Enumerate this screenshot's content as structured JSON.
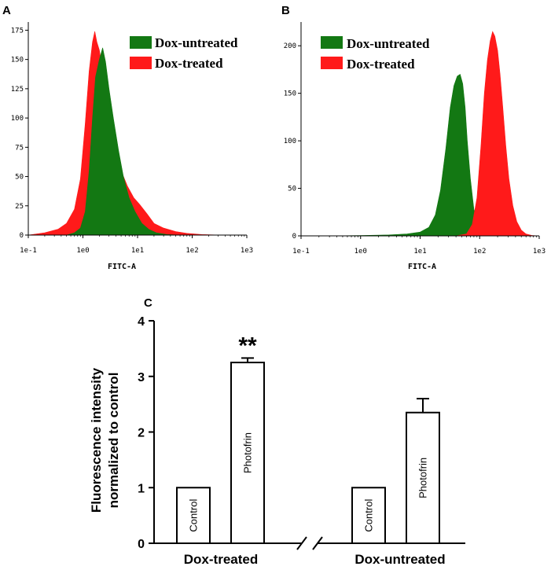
{
  "colors": {
    "untreated": "#137813",
    "treated": "#ff1a1a",
    "axis": "#000000",
    "bar_fill": "#ffffff"
  },
  "chart_data": [
    {
      "panel": "A",
      "type": "area",
      "title": "",
      "xlabel": "FITC-A",
      "ylabel": "",
      "x_scale": "log",
      "x_ticks": [
        "1e-1",
        "1e0",
        "1e1",
        "1e2",
        "1e3"
      ],
      "x_tick_values": [
        0.1,
        1,
        10,
        100,
        1000
      ],
      "y_ticks": [
        0,
        25,
        50,
        75,
        100,
        125,
        150,
        175
      ],
      "ylim": [
        0,
        182
      ],
      "legend": [
        "Dox-untreated",
        "Dox-treated"
      ],
      "legend_position": "top-right",
      "series": [
        {
          "name": "Dox-treated",
          "color_key": "treated",
          "x": [
            0.1,
            0.2,
            0.35,
            0.5,
            0.7,
            0.9,
            1.1,
            1.3,
            1.5,
            1.65,
            1.8,
            2.0,
            2.3,
            2.7,
            3.2,
            4.0,
            5.0,
            6.5,
            8.5,
            11,
            15,
            20,
            30,
            50,
            80,
            150,
            300,
            1000
          ],
          "values": [
            0,
            2,
            5,
            10,
            22,
            48,
            95,
            140,
            165,
            174,
            165,
            158,
            140,
            120,
            95,
            72,
            55,
            42,
            32,
            26,
            18,
            10,
            6,
            3,
            1.5,
            0.5,
            0.1,
            0
          ]
        },
        {
          "name": "Dox-untreated",
          "color_key": "untreated",
          "x": [
            0.5,
            0.7,
            0.9,
            1.1,
            1.3,
            1.5,
            1.7,
            2.0,
            2.3,
            2.6,
            3.0,
            3.6,
            4.5,
            5.5,
            7.0,
            9.0,
            12,
            16,
            22,
            35,
            60
          ],
          "values": [
            0,
            2,
            6,
            20,
            55,
            100,
            135,
            150,
            160,
            148,
            125,
            100,
            72,
            50,
            32,
            20,
            10,
            5,
            2,
            0.5,
            0
          ]
        }
      ]
    },
    {
      "panel": "B",
      "type": "area",
      "title": "",
      "xlabel": "FITC-A",
      "ylabel": "",
      "x_scale": "log",
      "x_ticks": [
        "1e-1",
        "1e0",
        "1e1",
        "1e2",
        "1e3"
      ],
      "x_tick_values": [
        0.1,
        1,
        10,
        100,
        1000
      ],
      "y_ticks": [
        0,
        50,
        100,
        150,
        200
      ],
      "ylim": [
        0,
        225
      ],
      "legend": [
        "Dox-untreated",
        "Dox-treated"
      ],
      "legend_position": "top-left",
      "series": [
        {
          "name": "Dox-untreated",
          "color_key": "untreated",
          "x": [
            0.3,
            1,
            3,
            6,
            10,
            14,
            18,
            22,
            27,
            32,
            37,
            42,
            47,
            52,
            57,
            62,
            70,
            80,
            95,
            115,
            150,
            200
          ],
          "values": [
            0,
            0.3,
            1,
            2,
            4,
            9,
            22,
            48,
            92,
            135,
            158,
            168,
            170,
            160,
            135,
            100,
            60,
            28,
            10,
            3,
            0.5,
            0
          ]
        },
        {
          "name": "Dox-treated",
          "color_key": "treated",
          "x": [
            40,
            60,
            75,
            90,
            105,
            120,
            135,
            150,
            165,
            180,
            200,
            220,
            245,
            275,
            310,
            360,
            420,
            500,
            600,
            750,
            900,
            1000
          ],
          "values": [
            0,
            2,
            12,
            40,
            95,
            150,
            185,
            205,
            215,
            210,
            195,
            170,
            135,
            95,
            60,
            32,
            15,
            6,
            2,
            0.5,
            0.1,
            0
          ]
        }
      ]
    },
    {
      "panel": "C",
      "type": "bar",
      "title": "",
      "xlabel": "",
      "ylabel": "Fluorescence intensity normalized to control",
      "ylabel_lines": [
        "Fluorescence intensity",
        "normalized to control"
      ],
      "ylim": [
        0,
        4
      ],
      "y_ticks": [
        "0",
        "1",
        "2",
        "3",
        "4"
      ],
      "groups": [
        "Dox-treated",
        "Dox-untreated"
      ],
      "bars": [
        {
          "group": "Dox-treated",
          "label": "Control",
          "value": 1.0,
          "error": 0
        },
        {
          "group": "Dox-treated",
          "label": "Photofrin",
          "value": 3.25,
          "error": 0.08,
          "significance": "**"
        },
        {
          "group": "Dox-untreated",
          "label": "Control",
          "value": 1.0,
          "error": 0
        },
        {
          "group": "Dox-untreated",
          "label": "Photofrin",
          "value": 2.35,
          "error": 0.25
        }
      ],
      "axis_break": true
    }
  ]
}
